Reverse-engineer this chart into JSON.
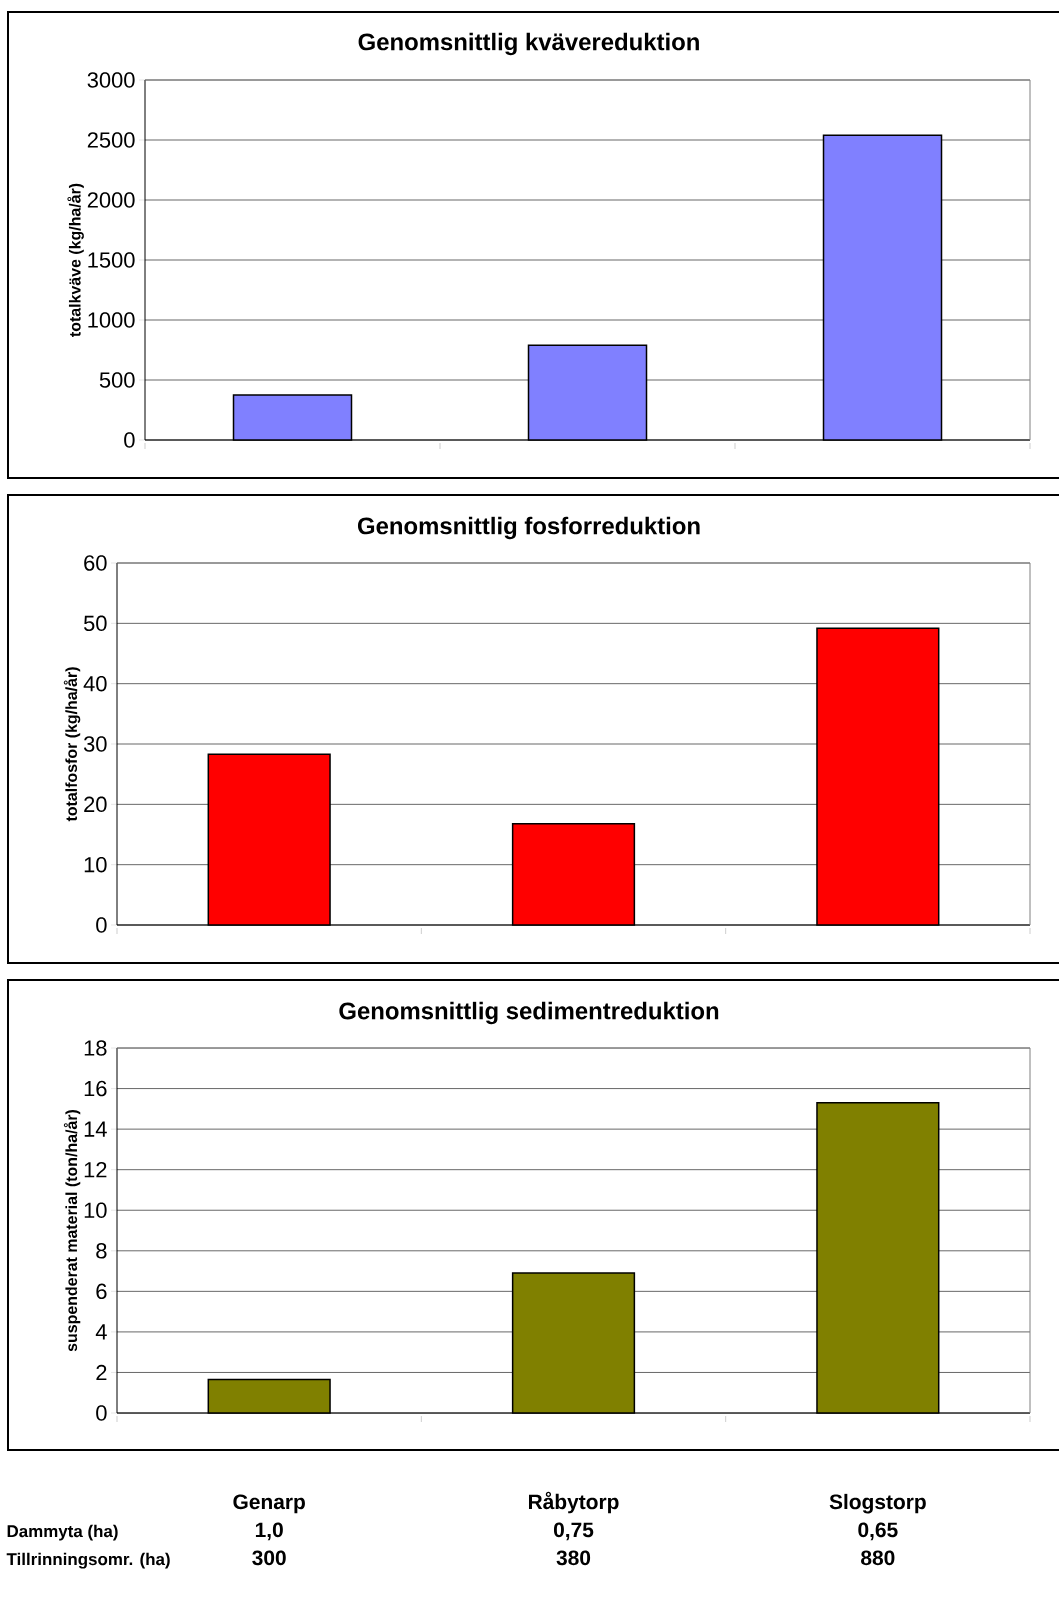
{
  "chart_data": [
    {
      "type": "bar",
      "title": "Genomsnittlig kvävereduktion",
      "ylabel": "totalkväve (kg/ha/år)",
      "categories": [
        null,
        null,
        null
      ],
      "values": [
        375,
        790,
        2540
      ],
      "color": "#8080ff",
      "ylim": [
        0,
        3000
      ],
      "yticks": [
        0,
        500,
        1000,
        1500,
        2000,
        2500,
        3000
      ],
      "grid": "y"
    },
    {
      "type": "bar",
      "title": "Genomsnittlig fosforreduktion",
      "ylabel": "totalfosfor (kg/ha/år)",
      "categories": [
        null,
        null,
        null
      ],
      "values": [
        28.3,
        16.8,
        49.2
      ],
      "color": "#ff0000",
      "ylim": [
        0,
        60
      ],
      "yticks": [
        0,
        10,
        20,
        30,
        40,
        50,
        60
      ],
      "grid": "y"
    },
    {
      "type": "bar",
      "title": "Genomsnittlig sedimentreduktion",
      "ylabel": "suspenderat material (ton/ha/år)",
      "categories": [
        "Genarp",
        "Råbytorp",
        "Slogstorp"
      ],
      "values": [
        1.65,
        6.9,
        15.3
      ],
      "color": "#808000",
      "ylim": [
        0,
        18
      ],
      "yticks": [
        0,
        2,
        4,
        6,
        8,
        10,
        12,
        14,
        16,
        18
      ],
      "grid": "y",
      "annotations": [
        "Dammyta (ha)",
        "1,0",
        "0,75",
        "0,65",
        "Tillrinningsomr. (ha)",
        "300",
        "380",
        "880"
      ]
    }
  ]
}
